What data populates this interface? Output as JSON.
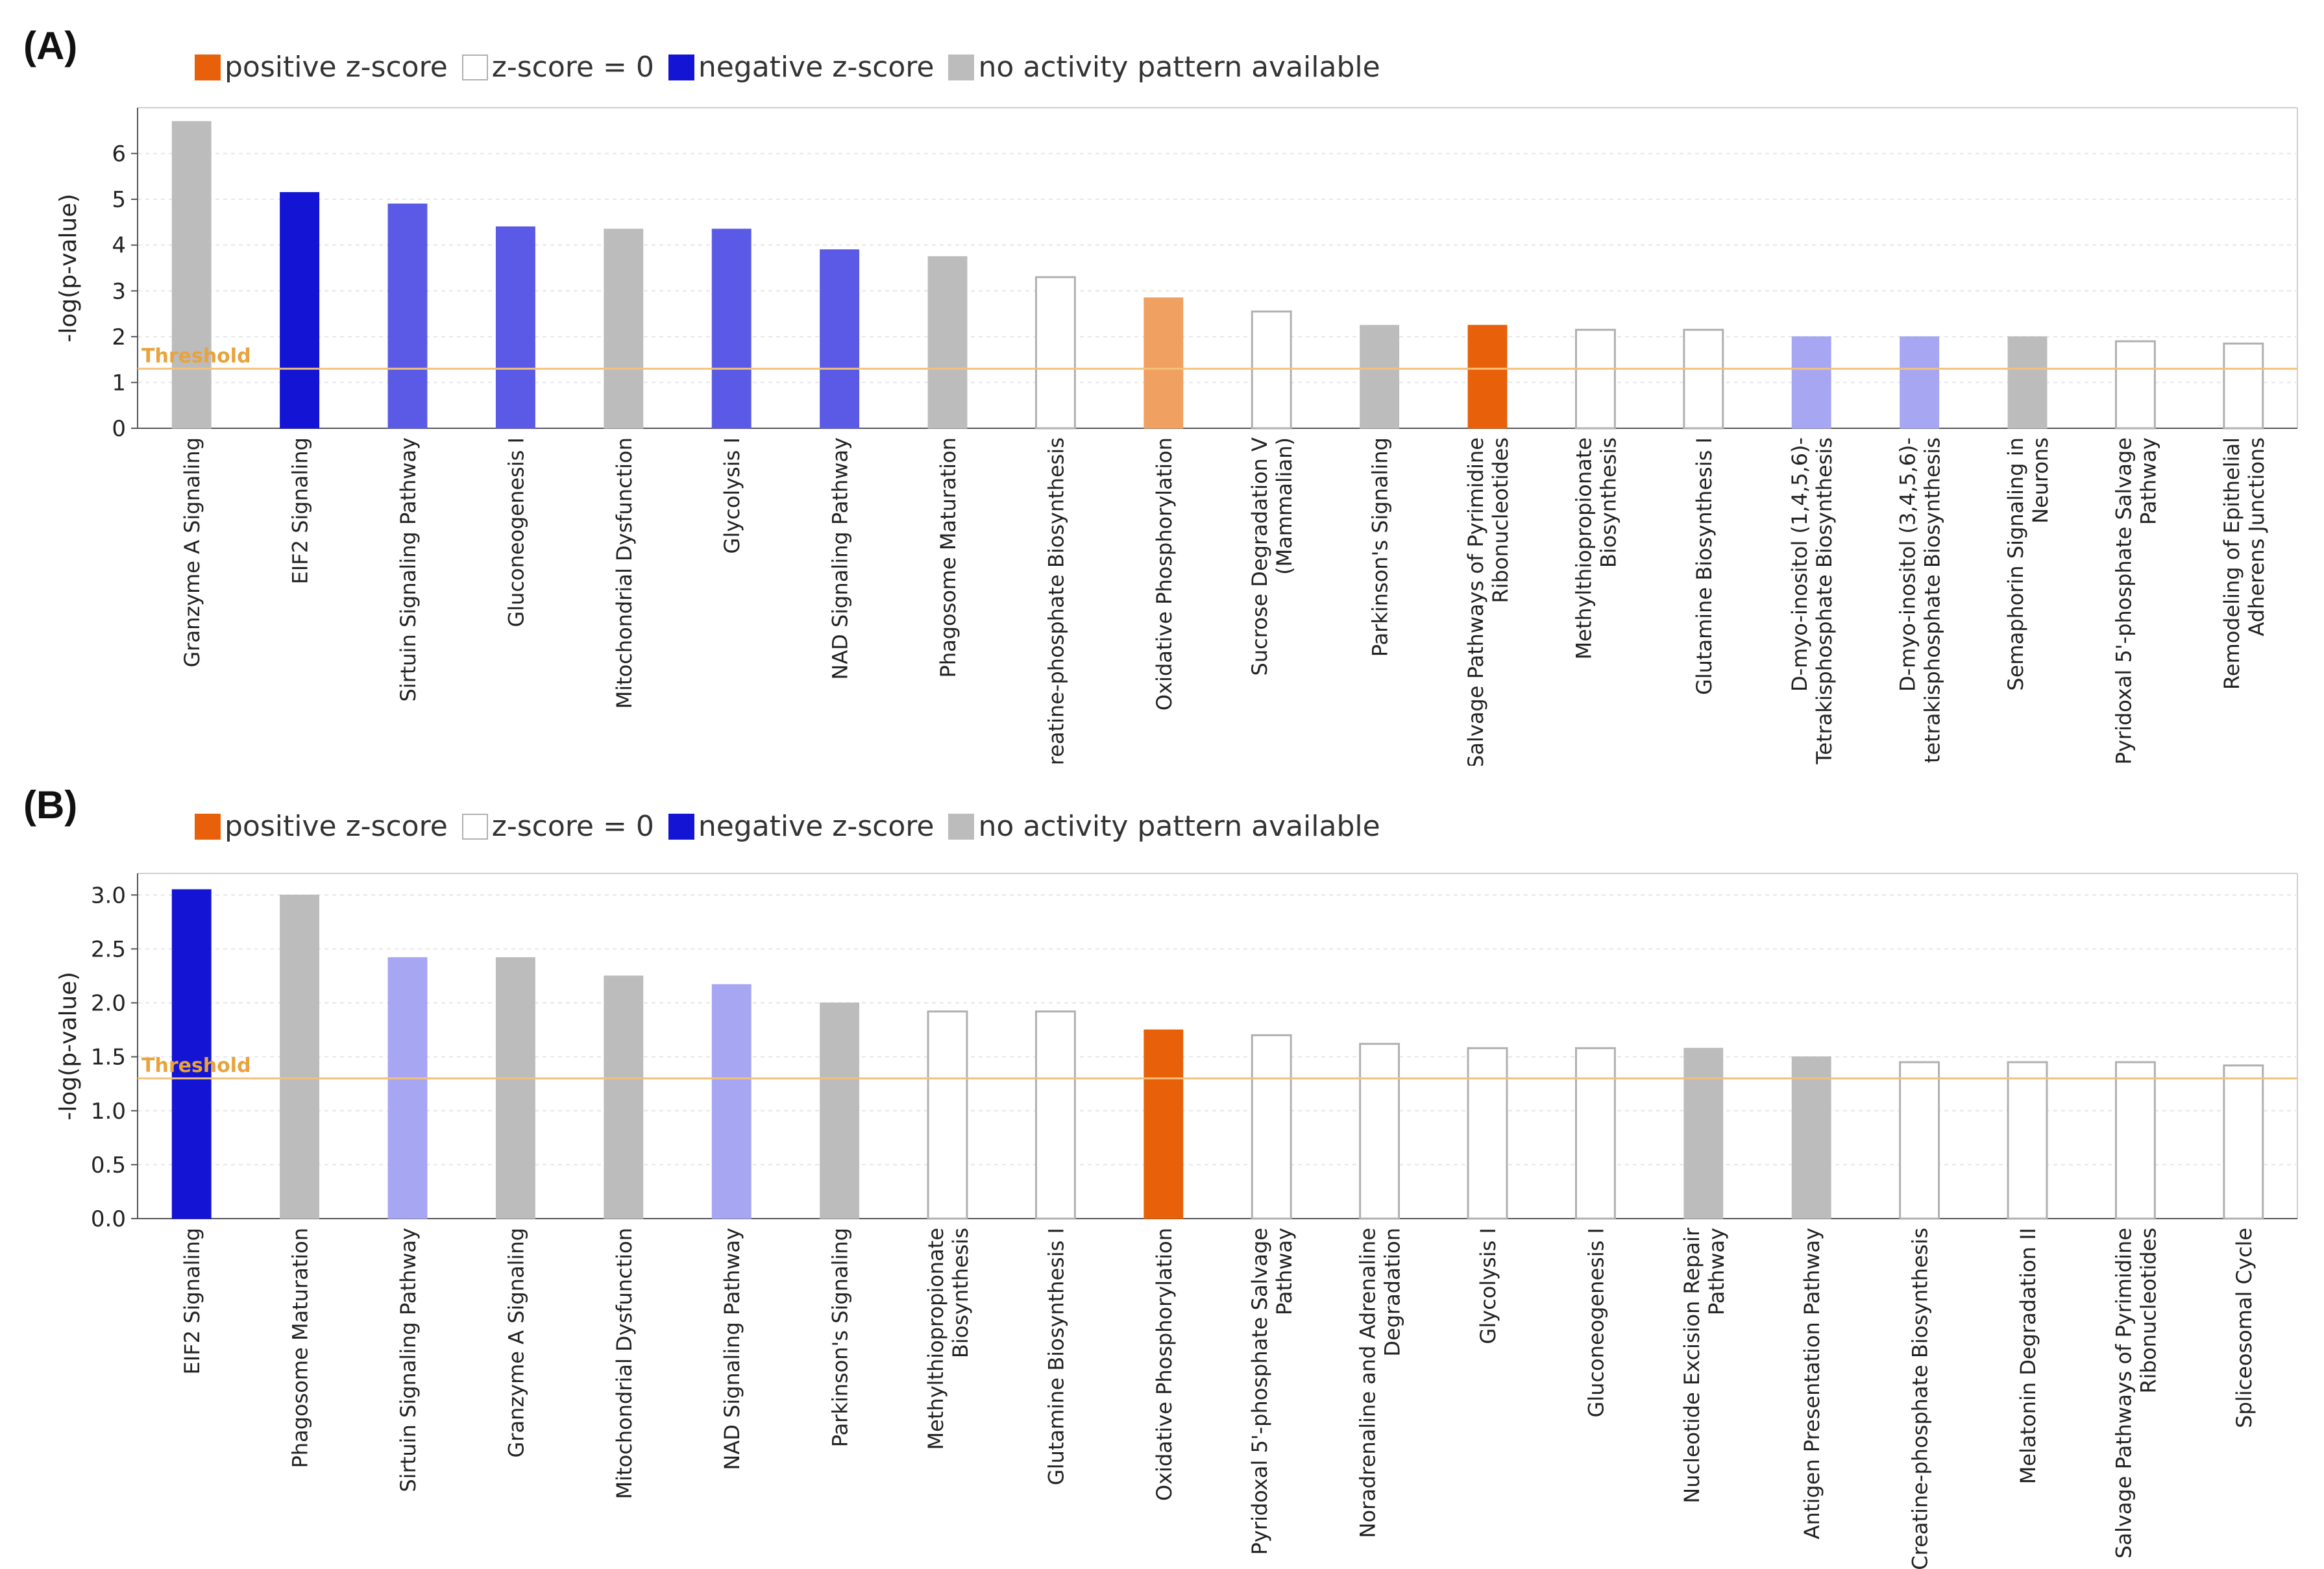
{
  "colors": {
    "positive": "#e8600a",
    "positive_light": "#f0a060",
    "negative": "#1414d4",
    "negative_mid": "#5a5ae6",
    "negative_light": "#a6a6f2",
    "zero_fill": "#ffffff",
    "zero_stroke": "#b0b0b0",
    "none": "#bcbcbc",
    "threshold": "#f1c27a",
    "grid": "#e6e6e6"
  },
  "legend": {
    "positive": "positive z-score",
    "zero": "z-score = 0",
    "negative": "negative z-score",
    "none": "no activity pattern available"
  },
  "panels": {
    "A": {
      "label": "(A)"
    },
    "B": {
      "label": "(B)"
    }
  },
  "chart_data": [
    {
      "type": "bar",
      "panel": "A",
      "title": "",
      "xlabel": "",
      "ylabel": "-log(p-value)",
      "ylim": [
        0,
        7
      ],
      "yticks": [
        0,
        1,
        2,
        3,
        4,
        5,
        6
      ],
      "ytick_labels": [
        "0",
        "1",
        "2",
        "3",
        "4",
        "5",
        "6"
      ],
      "threshold": 1.3,
      "threshold_label": "Threshold",
      "categories": [
        [
          "Granzyme A Signaling"
        ],
        [
          "EIF2 Signaling"
        ],
        [
          "Sirtuin Signaling Pathway"
        ],
        [
          "Gluconeogenesis I"
        ],
        [
          "Mitochondrial Dysfunction"
        ],
        [
          "Glycolysis I"
        ],
        [
          "NAD Signaling Pathway"
        ],
        [
          "Phagosome Maturation"
        ],
        [
          "Creatine-phosphate Biosynthesis"
        ],
        [
          "Oxidative Phosphorylation"
        ],
        [
          "Sucrose Degradation V",
          "(Mammalian)"
        ],
        [
          "Parkinson's Signaling"
        ],
        [
          "Salvage Pathways of Pyrimidine",
          "Ribonucleotides"
        ],
        [
          "Methylthiopropionate",
          "Biosynthesis"
        ],
        [
          "Glutamine Biosynthesis I"
        ],
        [
          "D-myo-inositol (1,4,5,6)-",
          "Tetrakisphosphate Biosynthesis"
        ],
        [
          "D-myo-inositol (3,4,5,6)-",
          "tetrakisphosphate Biosynthesis"
        ],
        [
          "Semaphorin Signaling in",
          "Neurons"
        ],
        [
          "Pyridoxal 5'-phosphate Salvage",
          "Pathway"
        ],
        [
          "Remodeling of Epithelial",
          "Adherens Junctions"
        ]
      ],
      "values": [
        6.7,
        5.15,
        4.9,
        4.4,
        4.35,
        4.35,
        3.9,
        3.75,
        3.3,
        2.85,
        2.55,
        2.25,
        2.25,
        2.15,
        2.15,
        2.0,
        2.0,
        2.0,
        1.9,
        1.85
      ],
      "zscore_class": [
        "none",
        "negative",
        "negative_mid",
        "negative_mid",
        "none",
        "negative_mid",
        "negative_mid",
        "none",
        "zero",
        "positive_light",
        "zero",
        "none",
        "positive",
        "zero",
        "zero",
        "negative_light",
        "negative_light",
        "none",
        "zero",
        "zero"
      ]
    },
    {
      "type": "bar",
      "panel": "B",
      "title": "",
      "xlabel": "",
      "ylabel": "-log(p-value)",
      "ylim": [
        0,
        3.2
      ],
      "yticks": [
        0,
        0.5,
        1.0,
        1.5,
        2.0,
        2.5,
        3.0
      ],
      "ytick_labels": [
        "0.0",
        "0.5",
        "1.0",
        "1.5",
        "2.0",
        "2.5",
        "3.0"
      ],
      "threshold": 1.3,
      "threshold_label": "Threshold",
      "categories": [
        [
          "EIF2 Signaling"
        ],
        [
          "Phagosome Maturation"
        ],
        [
          "Sirtuin Signaling Pathway"
        ],
        [
          "Granzyme A Signaling"
        ],
        [
          "Mitochondrial Dysfunction"
        ],
        [
          "NAD Signaling Pathway"
        ],
        [
          "Parkinson's Signaling"
        ],
        [
          "Methylthiopropionate",
          "Biosynthesis"
        ],
        [
          "Glutamine Biosynthesis I"
        ],
        [
          "Oxidative Phosphorylation"
        ],
        [
          "Pyridoxal 5'-phosphate Salvage",
          "Pathway"
        ],
        [
          "Noradrenaline and Adrenaline",
          "Degradation"
        ],
        [
          "Glycolysis I"
        ],
        [
          "Gluconeogenesis I"
        ],
        [
          "Nucleotide Excision Repair",
          "Pathway"
        ],
        [
          "Antigen Presentation Pathway"
        ],
        [
          "Creatine-phosphate Biosynthesis"
        ],
        [
          "Melatonin Degradation II"
        ],
        [
          "Salvage Pathways of Pyrimidine",
          "Ribonucleotides"
        ],
        [
          "Spliceosomal Cycle"
        ]
      ],
      "values": [
        3.05,
        3.0,
        2.42,
        2.42,
        2.25,
        2.17,
        2.0,
        1.92,
        1.92,
        1.75,
        1.7,
        1.62,
        1.58,
        1.58,
        1.58,
        1.5,
        1.45,
        1.45,
        1.45,
        1.42
      ],
      "zscore_class": [
        "negative",
        "none",
        "negative_light",
        "none",
        "none",
        "negative_light",
        "none",
        "zero",
        "zero",
        "positive",
        "zero",
        "zero",
        "zero",
        "zero",
        "none",
        "none",
        "zero",
        "zero",
        "zero",
        "zero"
      ]
    }
  ]
}
